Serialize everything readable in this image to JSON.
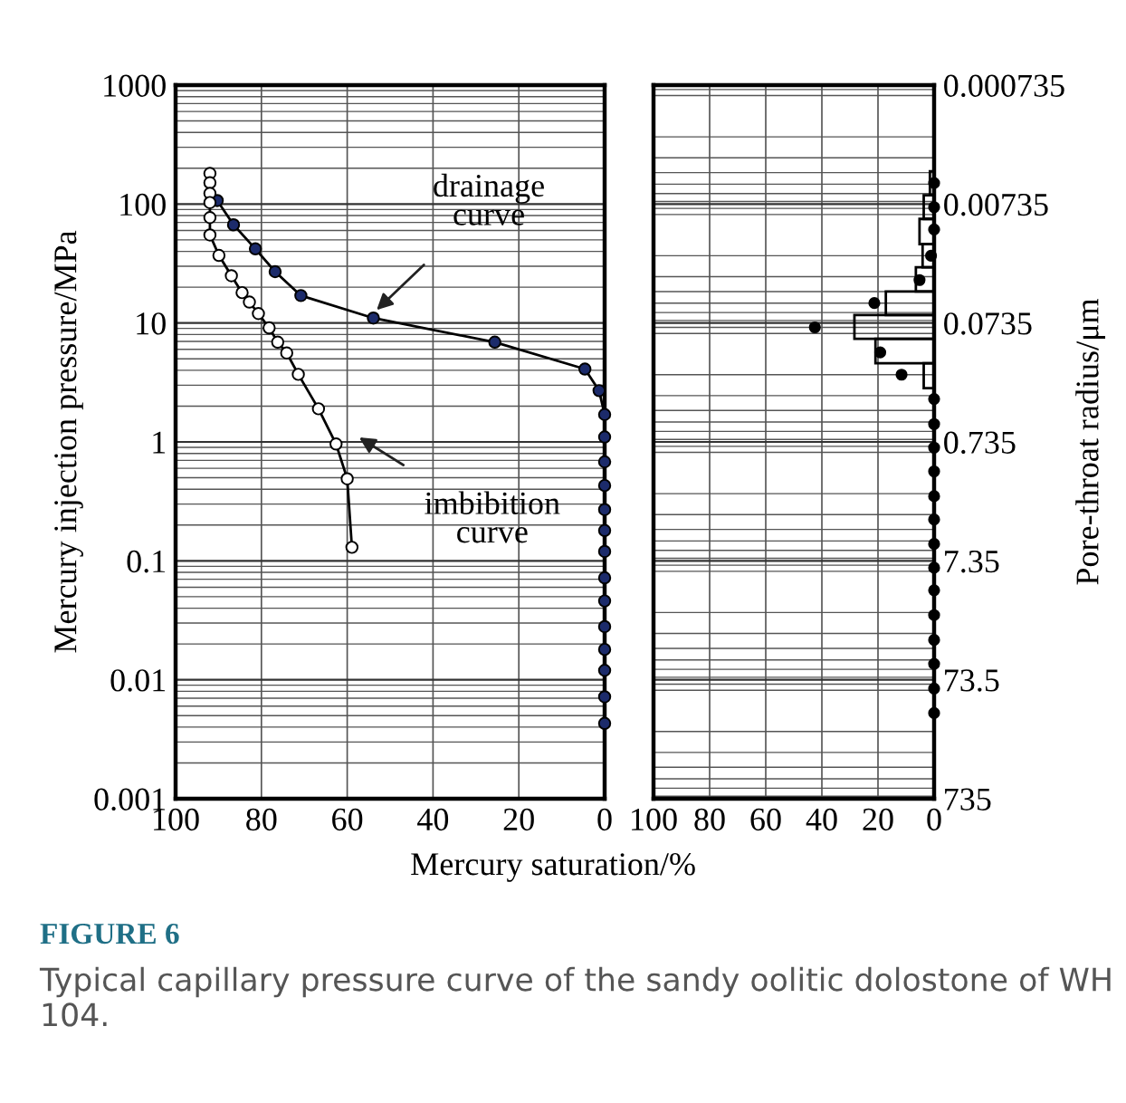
{
  "chart_data": [
    {
      "type": "line",
      "xlabel": "Mercury saturation/%",
      "ylabel": "Mercury injection pressure/MPa",
      "log": "y",
      "xlim": [
        100,
        0
      ],
      "xticks": [
        100,
        80,
        60,
        40,
        20,
        0
      ],
      "ylim": [
        0.001,
        1000
      ],
      "yticks": [
        0.001,
        0.01,
        0.1,
        1,
        10,
        100,
        1000
      ],
      "grid": true,
      "marker": "circle",
      "line_style": "solid",
      "series": [
        {
          "color": "#1c2b6b",
          "x": [
            90.3,
            86.5,
            81.4,
            76.8,
            70.8,
            53.9,
            25.6,
            4.6,
            1.3,
            0,
            0,
            0,
            0,
            0,
            0,
            0,
            0,
            0,
            0,
            0,
            0,
            0,
            0
          ],
          "values": [
            107,
            67,
            42,
            27,
            17,
            11,
            6.9,
            4.1,
            2.7,
            1.7,
            1.1,
            0.68,
            0.43,
            0.27,
            0.18,
            0.12,
            0.072,
            0.046,
            0.028,
            0.018,
            0.012,
            0.0072,
            0.0043
          ]
        },
        {
          "color": "#ffffff",
          "x": [
            92.0,
            92.0,
            92.0,
            92.0,
            92.0,
            92.0,
            89.9,
            87.0,
            84.5,
            82.8,
            80.7,
            78.2,
            76.2,
            74.1,
            71.4,
            66.7,
            62.6,
            60.0,
            58.9
          ],
          "values": [
            181,
            151,
            123,
            103,
            77,
            55,
            37,
            25,
            18,
            15,
            12,
            9.1,
            6.9,
            5.6,
            3.7,
            1.9,
            0.96,
            0.49,
            0.13
          ]
        }
      ],
      "annotations": [
        "drainage\ncurve",
        "imbibition\ncurve",
        "FIGURE 6",
        "Typical capillary pressure curve of the sandy oolitic dolostone of WH 104."
      ]
    },
    {
      "type": "histogram",
      "orientation": "horizontal",
      "ylabel": "Pore-throat radius/μm",
      "log": "y",
      "xlim": [
        100,
        0
      ],
      "xticks": [
        100,
        80,
        60,
        40,
        20,
        0
      ],
      "ylim": [
        735,
        0.000735
      ],
      "yticks": [
        0.000735,
        0.00735,
        0.0735,
        0.735,
        7.35,
        73.5,
        735
      ],
      "grid": true,
      "colors": [
        "#000000",
        "#000000",
        "#000000",
        "#000000",
        "#000000",
        "#000000",
        "#000000",
        "#000000",
        "#000000"
      ],
      "bins": [
        0.0039,
        0.0062,
        0.0098,
        0.016,
        0.025,
        0.04,
        0.063,
        0.1,
        0.16,
        0.26
      ],
      "values": [
        1.5,
        3.7,
        5.2,
        4.1,
        6.5,
        17.2,
        28.4,
        20.9,
        3.7
      ],
      "series": [
        {
          "type": "scatter",
          "color": "#000000",
          "marker": "circle",
          "x": [
            0.0049,
            0.0078,
            0.012,
            0.02,
            0.032,
            0.05,
            0.08,
            0.13,
            0.2,
            0.32,
            0.52,
            0.82,
            1.3,
            2.1,
            3.3,
            5.3,
            8.4,
            13,
            21,
            34,
            54,
            87,
            140
          ],
          "values": [
            0,
            0,
            0,
            1.1,
            5.2,
            21.3,
            42.5,
            19.2,
            11.6,
            0,
            0,
            0,
            0,
            0,
            0,
            0,
            0,
            0,
            0,
            0,
            0,
            0,
            0
          ]
        }
      ]
    }
  ]
}
